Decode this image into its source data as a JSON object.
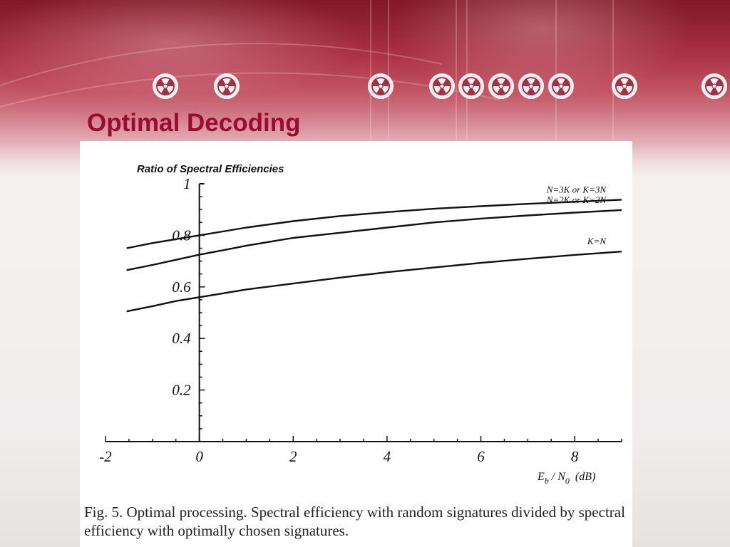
{
  "slide": {
    "title": "Optimal Decoding",
    "caption": "Fig. 5.   Optimal processing. Spectral efficiency with random signatures divided by spectral efficiency with optimally chosen signatures."
  },
  "icons": [
    "radiation-icon",
    "radiation-icon",
    "radiation-icon",
    "radiation-icon",
    "radiation-icon",
    "radiation-icon",
    "radiation-icon",
    "radiation-icon",
    "radiation-icon"
  ],
  "colors": {
    "title": "#9b0b2f",
    "banner": "#b7384a",
    "line": "#111111"
  },
  "chart_data": {
    "type": "line",
    "title": "Ratio of Spectral Efficiencies",
    "xlabel": {
      "e": "E",
      "b": "b",
      "slash": " / N",
      "zero": "0",
      "unit": "(dB)"
    },
    "ylabel": "",
    "xlim": [
      -2,
      9
    ],
    "ylim": [
      0,
      1
    ],
    "x_ticks": [
      -2,
      0,
      2,
      4,
      6,
      8
    ],
    "x_tick_labels": [
      "-2",
      "0",
      "2",
      "4",
      "6",
      "8"
    ],
    "y_ticks": [
      0.2,
      0.4,
      0.6,
      0.8,
      1
    ],
    "y_tick_labels": [
      "0.2",
      "0.4",
      "0.6",
      "0.8",
      "1"
    ],
    "grid": false,
    "series": [
      {
        "name": "N=3K or  K=3N",
        "x": [
          -1.55,
          -1,
          -0.5,
          0,
          0.5,
          1,
          2,
          3,
          4,
          5,
          6,
          7,
          8,
          9
        ],
        "y": [
          0.75,
          0.77,
          0.785,
          0.8,
          0.815,
          0.83,
          0.855,
          0.875,
          0.89,
          0.903,
          0.913,
          0.922,
          0.93,
          0.938
        ]
      },
      {
        "name": "N=2K or  K=2N",
        "x": [
          -1.55,
          -1,
          -0.5,
          0,
          0.5,
          1,
          2,
          3,
          4,
          5,
          6,
          7,
          8,
          9
        ],
        "y": [
          0.665,
          0.685,
          0.705,
          0.725,
          0.742,
          0.76,
          0.79,
          0.81,
          0.83,
          0.85,
          0.865,
          0.877,
          0.888,
          0.898
        ]
      },
      {
        "name": "K=N",
        "x": [
          -1.55,
          -1,
          -0.5,
          0,
          0.5,
          1,
          2,
          3,
          4,
          5,
          6,
          7,
          8,
          9
        ],
        "y": [
          0.505,
          0.525,
          0.545,
          0.56,
          0.575,
          0.59,
          0.613,
          0.636,
          0.657,
          0.675,
          0.693,
          0.709,
          0.724,
          0.737
        ]
      }
    ]
  }
}
